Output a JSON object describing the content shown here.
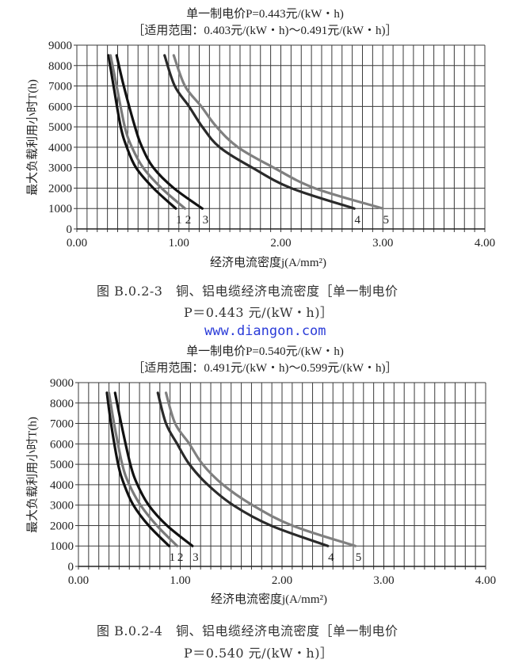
{
  "chart_data": [
    {
      "type": "line",
      "title": "单一制电价P=0.443元/(kW・h)",
      "subtitle": "［适用范围：0.403元/(kW・h)～0.491元/(kW・h)］",
      "xlabel": "经济电流密度j(A/mm²)",
      "ylabel": "最大负载利用小时T(h)",
      "xlim": [
        0,
        4
      ],
      "ylim": [
        0,
        9000
      ],
      "x_ticks": [
        "0.00",
        "1.00",
        "2.00",
        "3.00",
        "4.00"
      ],
      "y_ticks": [
        "0",
        "1000",
        "2000",
        "3000",
        "4000",
        "5000",
        "6000",
        "7000",
        "8000",
        "9000"
      ],
      "grid": {
        "x_step": 0.1,
        "y_step": 1000,
        "on": true
      },
      "caption_line1": "图 B.0.2-3　铜、铝电缆经济电流密度［单一制电价",
      "caption_line2": "P＝0.443 元/(kW・h)］",
      "series": [
        {
          "name": "1",
          "color": "#111111",
          "points": [
            [
              0.31,
              8500
            ],
            [
              0.36,
              7000
            ],
            [
              0.43,
              5000
            ],
            [
              0.49,
              4000
            ],
            [
              0.58,
              3000
            ],
            [
              0.75,
              2000
            ],
            [
              0.97,
              1000
            ]
          ]
        },
        {
          "name": "2",
          "color": "#7a7a7a",
          "points": [
            [
              0.33,
              8500
            ],
            [
              0.39,
              7000
            ],
            [
              0.47,
              5000
            ],
            [
              0.54,
              4000
            ],
            [
              0.65,
              3000
            ],
            [
              0.83,
              2000
            ],
            [
              1.06,
              1000
            ]
          ]
        },
        {
          "name": "3",
          "color": "#111111",
          "points": [
            [
              0.39,
              8500
            ],
            [
              0.46,
              7000
            ],
            [
              0.57,
              5000
            ],
            [
              0.64,
              4000
            ],
            [
              0.75,
              3000
            ],
            [
              0.95,
              2000
            ],
            [
              1.23,
              1000
            ]
          ]
        },
        {
          "name": "4",
          "color": "#2a2a2a",
          "points": [
            [
              0.86,
              8500
            ],
            [
              0.96,
              7000
            ],
            [
              1.1,
              6000
            ],
            [
              1.23,
              5000
            ],
            [
              1.4,
              4000
            ],
            [
              1.72,
              3000
            ],
            [
              2.1,
              2000
            ],
            [
              2.72,
              1000
            ]
          ]
        },
        {
          "name": "5",
          "color": "#808080",
          "points": [
            [
              0.95,
              8500
            ],
            [
              1.06,
              7000
            ],
            [
              1.22,
              6000
            ],
            [
              1.37,
              5000
            ],
            [
              1.58,
              4000
            ],
            [
              1.93,
              3000
            ],
            [
              2.33,
              2000
            ],
            [
              3.0,
              1000
            ]
          ]
        }
      ]
    },
    {
      "type": "line",
      "title": "单一制电价P=0.540元/(kW・h)",
      "subtitle": "［适用范围：0.491元/(kW・h)～0.599元/(kW・h)］",
      "xlabel": "经济电流密度j(A/mm²)",
      "ylabel": "最大负载利用小时T(h)",
      "xlim": [
        0,
        4
      ],
      "ylim": [
        0,
        9000
      ],
      "x_ticks": [
        "0.00",
        "1.00",
        "2.00",
        "3.00",
        "4.00"
      ],
      "y_ticks": [
        "0",
        "1000",
        "2000",
        "3000",
        "4000",
        "5000",
        "6000",
        "7000",
        "8000",
        "9000"
      ],
      "grid": {
        "x_step": 0.1,
        "y_step": 1000,
        "on": true
      },
      "caption_line1": "图 B.0.2-4　铜、铝电缆经济电流密度［单一制电价",
      "caption_line2": "P＝0.540 元/(kW・h)］",
      "series": [
        {
          "name": "1",
          "color": "#111111",
          "points": [
            [
              0.28,
              8500
            ],
            [
              0.32,
              7000
            ],
            [
              0.39,
              5000
            ],
            [
              0.45,
              4000
            ],
            [
              0.54,
              3000
            ],
            [
              0.69,
              2000
            ],
            [
              0.89,
              1000
            ]
          ]
        },
        {
          "name": "2",
          "color": "#7a7a7a",
          "points": [
            [
              0.3,
              8500
            ],
            [
              0.35,
              7000
            ],
            [
              0.43,
              5000
            ],
            [
              0.5,
              4000
            ],
            [
              0.61,
              3000
            ],
            [
              0.77,
              2000
            ],
            [
              0.97,
              1000
            ]
          ]
        },
        {
          "name": "3",
          "color": "#111111",
          "points": [
            [
              0.36,
              8500
            ],
            [
              0.42,
              7000
            ],
            [
              0.51,
              5000
            ],
            [
              0.58,
              4000
            ],
            [
              0.69,
              3000
            ],
            [
              0.87,
              2000
            ],
            [
              1.12,
              1000
            ]
          ]
        },
        {
          "name": "4",
          "color": "#2a2a2a",
          "points": [
            [
              0.78,
              8500
            ],
            [
              0.86,
              7000
            ],
            [
              0.97,
              6000
            ],
            [
              1.09,
              5000
            ],
            [
              1.27,
              4000
            ],
            [
              1.52,
              3000
            ],
            [
              1.89,
              2000
            ],
            [
              2.45,
              1000
            ]
          ]
        },
        {
          "name": "5",
          "color": "#808080",
          "points": [
            [
              0.86,
              8500
            ],
            [
              0.95,
              7000
            ],
            [
              1.09,
              6000
            ],
            [
              1.22,
              5000
            ],
            [
              1.42,
              4000
            ],
            [
              1.71,
              3000
            ],
            [
              2.1,
              2000
            ],
            [
              2.72,
              1000
            ]
          ]
        }
      ]
    }
  ],
  "watermark": "www.diangon.com"
}
